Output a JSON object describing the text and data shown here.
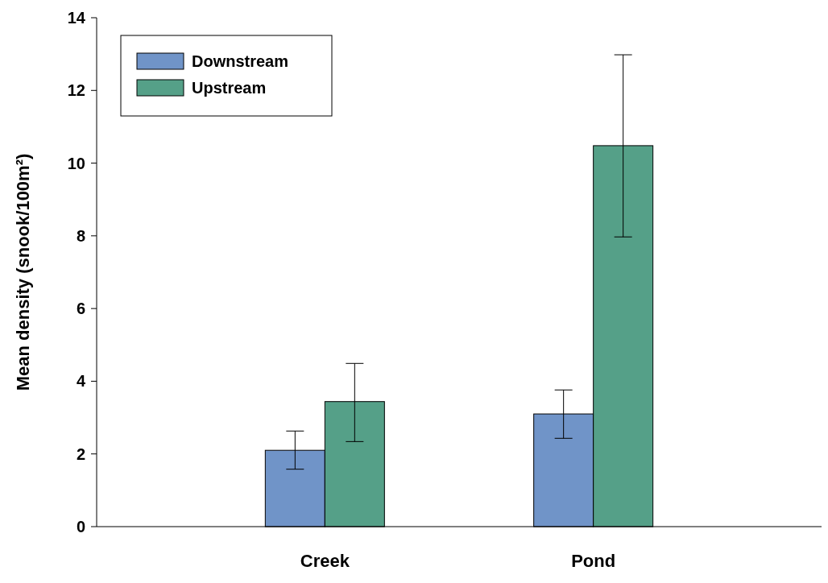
{
  "chart_data": {
    "type": "bar",
    "ylabel": "Mean density (snook/100m²)",
    "categories": [
      "Creek",
      "Pond"
    ],
    "series": [
      {
        "name": "Downstream",
        "color": "#7094c8",
        "values": [
          2.1,
          3.1
        ],
        "errors": [
          [
            1.58,
            2.63
          ],
          [
            2.43,
            3.76
          ]
        ]
      },
      {
        "name": "Upstream",
        "color": "#55a088",
        "values": [
          3.44,
          10.48
        ],
        "errors": [
          [
            2.34,
            4.49
          ],
          [
            7.97,
            12.98
          ]
        ]
      }
    ],
    "ylim": [
      0,
      14
    ],
    "yticks": [
      0,
      2,
      4,
      6,
      8,
      10,
      12,
      14
    ],
    "grid": false,
    "legend": "top left"
  }
}
